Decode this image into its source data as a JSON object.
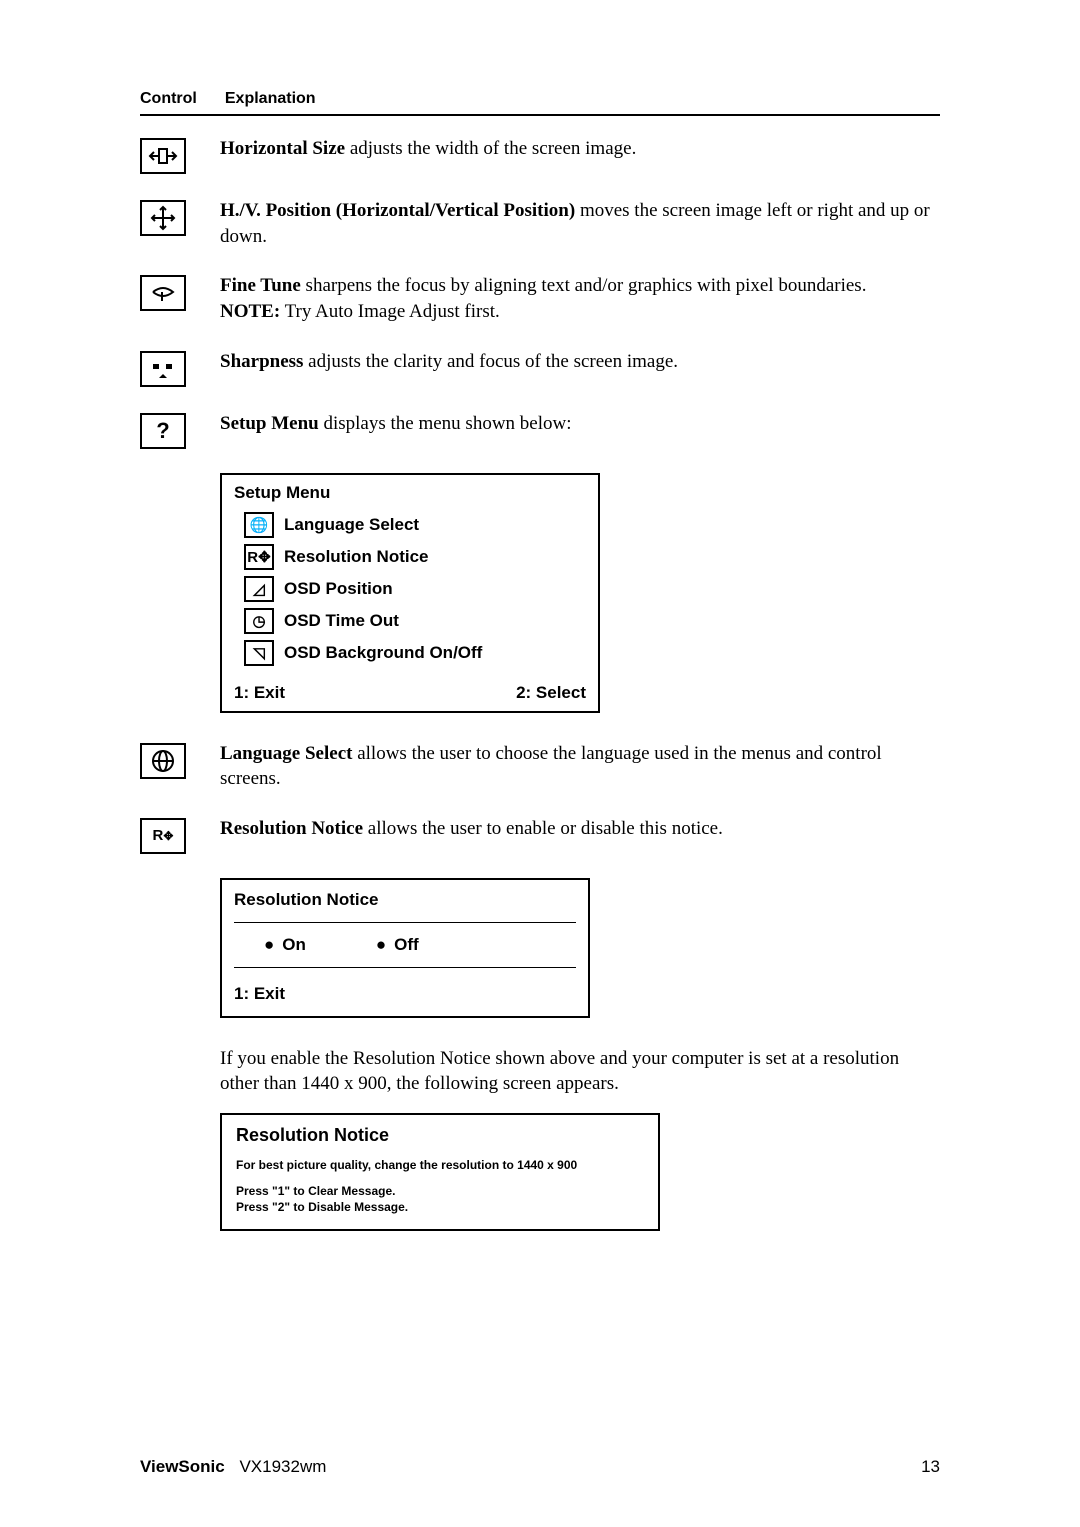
{
  "header": {
    "control": "Control",
    "explanation": "Explanation"
  },
  "items": {
    "horizSize": {
      "bold": "Horizontal Size",
      "rest": " adjusts the width of the screen image."
    },
    "hvpos": {
      "bold": "H./V. Position (Horizontal/Vertical Position)",
      "rest": " moves the screen image left or right and up or down."
    },
    "fineTune": {
      "bold": "Fine Tune",
      "rest": " sharpens the focus by aligning text and/or graphics with pixel boundaries.",
      "noteBold": "NOTE:",
      "noteRest": " Try Auto Image Adjust first."
    },
    "sharpness": {
      "bold": "Sharpness",
      "rest": " adjusts the clarity and focus of the screen image."
    },
    "setupMenu": {
      "bold": "Setup Menu",
      "rest": " displays the menu shown below:"
    },
    "languageSelect": {
      "bold": "Language Select",
      "rest": " allows the user to choose the language used in the menus and control screens."
    },
    "resolutionNotice": {
      "bold": "Resolution Notice",
      "rest": " allows the user to enable or disable this notice."
    },
    "resEnablePara": "If you enable the Resolution Notice shown above and your computer is set at a resolution other than 1440 x 900, the following screen appears."
  },
  "iconGlyphs": {
    "horizSize": "⇤⇥",
    "hvpos": "✥",
    "fineTune": "⟳",
    "sharpness": "▪▴▪",
    "setupMenu": "?",
    "languageSelect": "🌐",
    "resolutionNotice": "R✥"
  },
  "setupMenuBox": {
    "title": "Setup Menu",
    "items": [
      {
        "icon": "🌐",
        "label": "Language Select"
      },
      {
        "icon": "R✥",
        "label": "Resolution Notice"
      },
      {
        "icon": "◿",
        "label": "OSD Position"
      },
      {
        "icon": "◷",
        "label": "OSD Time Out"
      },
      {
        "icon": "◹",
        "label": "OSD Background On/Off"
      }
    ],
    "footerLeft": "1: Exit",
    "footerRight": "2: Select"
  },
  "resBox": {
    "title": "Resolution Notice",
    "on": "On",
    "off": "Off",
    "footer": "1: Exit"
  },
  "noticeBox": {
    "title": "Resolution Notice",
    "line1": "For best picture quality, change the resolution to 1440 x 900",
    "line2a": "Press \"1\" to Clear Message.",
    "line2b": "Press \"2\" to Disable Message."
  },
  "footer": {
    "brand": "ViewSonic",
    "model": "VX1932wm",
    "pageNum": "13"
  }
}
